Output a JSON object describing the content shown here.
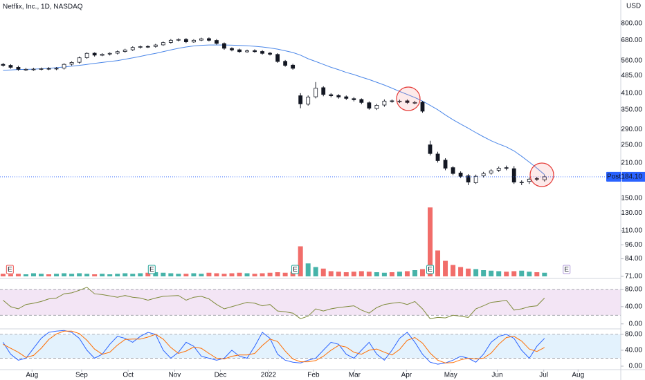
{
  "chart_data": {
    "type": "candlestick",
    "title": "Netflix, Inc., 1D, NASDAQ",
    "currency": "USD",
    "log_scale": true,
    "xlim": [
      -0.4,
      81
    ],
    "xticks": [
      {
        "value": 3.8,
        "label": "Aug"
      },
      {
        "value": 10.3,
        "label": "Sep"
      },
      {
        "value": 16.4,
        "label": "Oct"
      },
      {
        "value": 22.5,
        "label": "Nov"
      },
      {
        "value": 28.5,
        "label": "Dec"
      },
      {
        "value": 34.8,
        "label": "2022"
      },
      {
        "value": 40.7,
        "label": "Feb"
      },
      {
        "value": 46.1,
        "label": "Mar"
      },
      {
        "value": 52.9,
        "label": "Apr"
      },
      {
        "value": 58.7,
        "label": "May"
      },
      {
        "value": 64.8,
        "label": "Jun"
      },
      {
        "value": 70.9,
        "label": "Jul"
      },
      {
        "value": 75.4,
        "label": "Aug"
      }
    ],
    "ylim": [
      71,
      1000
    ],
    "yticks": [
      {
        "value": 800,
        "label": "800.00"
      },
      {
        "value": 680,
        "label": "680.00"
      },
      {
        "value": 560,
        "label": "560.00"
      },
      {
        "value": 485,
        "label": "485.00"
      },
      {
        "value": 410,
        "label": "410.00"
      },
      {
        "value": 350,
        "label": "350.00"
      },
      {
        "value": 290,
        "label": "290.00"
      },
      {
        "value": 250,
        "label": "250.00"
      },
      {
        "value": 210,
        "label": "210.00"
      },
      {
        "value": 150,
        "label": "150.00"
      },
      {
        "value": 130,
        "label": "130.00"
      },
      {
        "value": 110,
        "label": "110.00"
      },
      {
        "value": 96,
        "label": "96.00"
      },
      {
        "value": 84,
        "label": "84.00"
      },
      {
        "value": 71,
        "label": "71.00"
      }
    ],
    "up_color": "#ffffff",
    "down_color": "#131722",
    "open": [
      540,
      535,
      525,
      514,
      515,
      516,
      519,
      518,
      521,
      541,
      551,
      576,
      601,
      589,
      596,
      601,
      611,
      621,
      636,
      641,
      641,
      651,
      666,
      681,
      686,
      669,
      681,
      691,
      679,
      659,
      629,
      621,
      609,
      616,
      611,
      601,
      594,
      556,
      536,
      400,
      369,
      396,
      432,
      404,
      401,
      396,
      389,
      386,
      374,
      354,
      366,
      381,
      379,
      381,
      374,
      376,
      250,
      229,
      216,
      201,
      191,
      186,
      174,
      186,
      191,
      196,
      201,
      199,
      174,
      176,
      181,
      179
    ],
    "high": [
      548,
      541,
      533,
      522,
      522,
      524,
      526,
      526,
      546,
      556,
      582,
      606,
      606,
      601,
      606,
      617,
      627,
      642,
      647,
      648,
      657,
      672,
      688,
      693,
      694,
      687,
      697,
      699,
      688,
      666,
      636,
      628,
      622,
      624,
      619,
      608,
      601,
      563,
      543,
      410,
      401,
      456,
      438,
      410,
      406,
      401,
      395,
      390,
      379,
      370,
      386,
      386,
      385,
      386,
      381,
      380,
      260,
      234,
      220,
      204,
      194,
      189,
      188,
      193,
      198,
      203,
      205,
      204,
      178,
      183,
      184,
      187
    ],
    "low": [
      528,
      518,
      508,
      507,
      508,
      510,
      511,
      511,
      514,
      534,
      544,
      570,
      582,
      584,
      588,
      594,
      604,
      614,
      628,
      632,
      634,
      645,
      659,
      673,
      662,
      664,
      675,
      673,
      652,
      621,
      612,
      603,
      604,
      603,
      593,
      588,
      548,
      528,
      513,
      355,
      364,
      390,
      398,
      394,
      389,
      384,
      379,
      369,
      350,
      349,
      360,
      374,
      373,
      370,
      369,
      340,
      226,
      211,
      196,
      187,
      182,
      170,
      172,
      183,
      188,
      193,
      196,
      172,
      170,
      172,
      177,
      176
    ],
    "close": [
      535,
      525,
      515,
      515,
      516,
      518,
      518,
      520,
      540,
      550,
      575,
      600,
      590,
      595,
      600,
      610,
      620,
      635,
      640,
      640,
      650,
      665,
      680,
      685,
      670,
      680,
      690,
      680,
      660,
      630,
      620,
      610,
      615,
      610,
      600,
      595,
      555,
      535,
      520,
      370,
      395,
      430,
      405,
      400,
      395,
      390,
      385,
      375,
      355,
      365,
      380,
      380,
      380,
      375,
      375,
      345,
      230,
      215,
      200,
      190,
      185,
      175,
      185,
      190,
      195,
      200,
      200,
      175,
      175,
      180,
      180,
      184.1
    ],
    "last_price": {
      "label": "Post",
      "value": 184.1,
      "value_label": "184.10",
      "color": "#2962ff"
    },
    "moving_average": {
      "color": "#4a86e8",
      "values": [
        510,
        512,
        514,
        515,
        516,
        518,
        520,
        523,
        527,
        531,
        535,
        540,
        545,
        550,
        555,
        560,
        567,
        575,
        583,
        592,
        600,
        610,
        620,
        630,
        638,
        644,
        648,
        650,
        650,
        650,
        649,
        647,
        645,
        642,
        638,
        632,
        625,
        615,
        605,
        590,
        570,
        555,
        540,
        525,
        513,
        500,
        490,
        478,
        467,
        455,
        443,
        430,
        417,
        405,
        393,
        380,
        365,
        350,
        333,
        318,
        305,
        293,
        281,
        270,
        260,
        252,
        245,
        236,
        224,
        212,
        200,
        188
      ]
    },
    "volume": {
      "vlim": [
        0,
        140
      ],
      "up_color": "#26a69a",
      "down_color": "#ef5350",
      "values": [
        5,
        4,
        5,
        4,
        6,
        5,
        4,
        5,
        6,
        5,
        6,
        5,
        4,
        5,
        4,
        5,
        6,
        5,
        6,
        7,
        8,
        7,
        6,
        5,
        5,
        6,
        5,
        7,
        6,
        5,
        6,
        7,
        6,
        5,
        6,
        7,
        8,
        7,
        9,
        58,
        25,
        18,
        15,
        10,
        9,
        8,
        9,
        10,
        9,
        8,
        7,
        8,
        9,
        10,
        12,
        14,
        133,
        50,
        30,
        22,
        18,
        15,
        14,
        12,
        11,
        10,
        9,
        10,
        11,
        9,
        8,
        7
      ]
    },
    "events": [
      {
        "x": 0.9,
        "label": "E",
        "color": "#ef5350"
      },
      {
        "x": 19.5,
        "label": "E",
        "color": "#26a69a"
      },
      {
        "x": 38.3,
        "label": "E",
        "color": "#26a69a"
      },
      {
        "x": 56.0,
        "label": "E",
        "color": "#26a69a"
      },
      {
        "x": 73.9,
        "label": "E",
        "color": "#b39ddb"
      }
    ],
    "rsi": {
      "color": "#7e8a3a",
      "band": [
        20,
        80
      ],
      "band_color": "#f3e5f5",
      "ylim": [
        -10,
        104
      ],
      "yticks": [
        {
          "value": 80,
          "label": "80.00"
        },
        {
          "value": 40,
          "label": "40.00"
        },
        {
          "value": 0,
          "label": "0.00"
        }
      ],
      "values": [
        55,
        40,
        35,
        45,
        48,
        52,
        58,
        60,
        70,
        72,
        78,
        85,
        70,
        68,
        65,
        62,
        66,
        62,
        60,
        55,
        60,
        64,
        65,
        66,
        55,
        62,
        64,
        58,
        45,
        35,
        40,
        45,
        50,
        48,
        42,
        45,
        30,
        28,
        25,
        12,
        18,
        35,
        30,
        35,
        38,
        40,
        42,
        32,
        25,
        38,
        45,
        48,
        50,
        45,
        52,
        35,
        12,
        15,
        14,
        20,
        18,
        15,
        35,
        42,
        50,
        52,
        55,
        32,
        35,
        40,
        42,
        60
      ]
    },
    "stochastic": {
      "band": [
        20,
        80
      ],
      "band_color": "#e3f2fd",
      "ylim": [
        -7,
        92
      ],
      "yticks": [
        {
          "value": 80,
          "label": "80.00"
        },
        {
          "value": 40,
          "label": "40.00"
        },
        {
          "value": 0,
          "label": "0.00"
        }
      ],
      "series": [
        {
          "color": "#2962ff",
          "values": [
            60,
            30,
            15,
            20,
            45,
            70,
            85,
            88,
            90,
            85,
            70,
            40,
            20,
            30,
            55,
            75,
            70,
            60,
            75,
            85,
            80,
            40,
            20,
            35,
            60,
            50,
            25,
            20,
            15,
            20,
            40,
            25,
            20,
            50,
            85,
            70,
            30,
            15,
            10,
            8,
            15,
            20,
            40,
            60,
            55,
            30,
            20,
            40,
            60,
            30,
            15,
            40,
            70,
            85,
            60,
            30,
            10,
            5,
            8,
            15,
            25,
            20,
            10,
            30,
            60,
            75,
            80,
            70,
            40,
            20,
            50,
            70
          ]
        },
        {
          "color": "#ff6d00",
          "values": [
            55,
            45,
            35,
            22,
            27,
            45,
            67,
            81,
            88,
            88,
            82,
            65,
            43,
            30,
            35,
            53,
            67,
            68,
            68,
            73,
            80,
            68,
            47,
            32,
            38,
            48,
            45,
            32,
            20,
            18,
            25,
            28,
            28,
            32,
            52,
            68,
            62,
            38,
            18,
            11,
            11,
            14,
            25,
            40,
            52,
            48,
            35,
            30,
            40,
            43,
            35,
            28,
            42,
            65,
            72,
            58,
            33,
            15,
            8,
            9,
            16,
            20,
            18,
            20,
            33,
            55,
            72,
            75,
            63,
            43,
            37,
            47
          ]
        }
      ]
    }
  }
}
